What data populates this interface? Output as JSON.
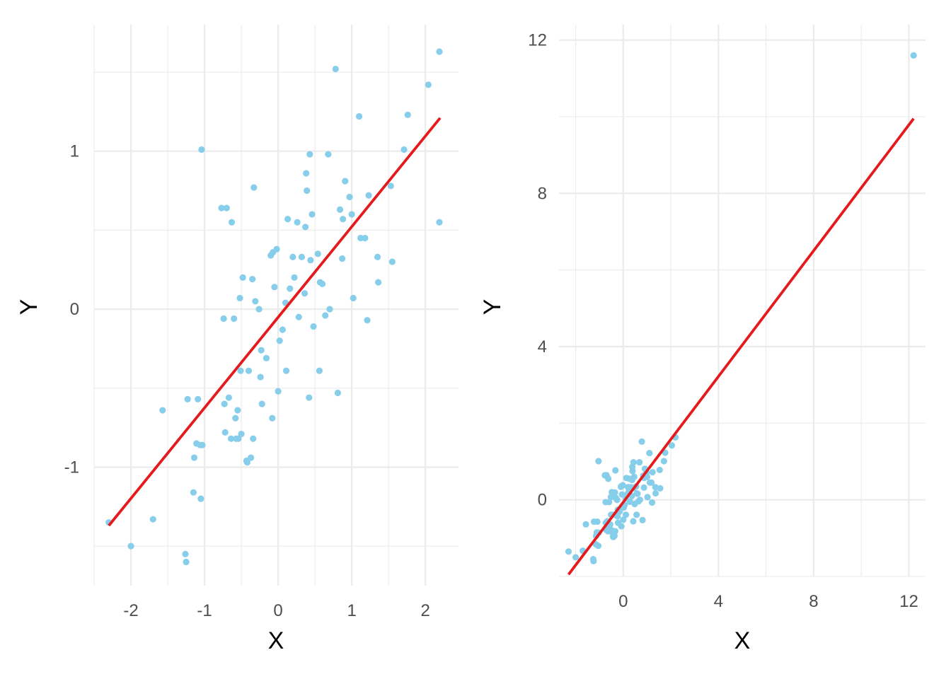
{
  "colors": {
    "point": "#87CEEB",
    "fit_line": "#E41A1C",
    "grid": "#EBEBEB"
  },
  "chart_data": [
    {
      "type": "scatter",
      "xlabel": "X",
      "ylabel": "Y",
      "xlim": [
        -2.5,
        2.45
      ],
      "ylim": [
        -1.75,
        1.8
      ],
      "xticks": [
        -2,
        -1,
        0,
        1,
        2
      ],
      "xtick_labels": [
        "-2",
        "-1",
        "0",
        "1",
        "2"
      ],
      "yticks": [
        -1,
        0,
        1
      ],
      "ytick_labels": [
        "-1",
        "0",
        "1"
      ],
      "grid": true,
      "fit_line": {
        "x": [
          -2.3,
          2.2
        ],
        "y": [
          -1.37,
          1.21
        ]
      },
      "points": {
        "x": [
          -2.3,
          -2.0,
          -1.7,
          -1.57,
          -1.26,
          -1.25,
          -1.23,
          -1.15,
          -1.14,
          -1.11,
          -1.09,
          -1.06,
          -1.05,
          -1.04,
          -1.03,
          -0.77,
          -0.74,
          -0.73,
          -0.72,
          -0.7,
          -0.67,
          -0.64,
          -0.63,
          -0.6,
          -0.58,
          -0.57,
          -0.55,
          -0.54,
          -0.52,
          -0.51,
          -0.5,
          -0.48,
          -0.43,
          -0.42,
          -0.4,
          -0.37,
          -0.35,
          -0.34,
          -0.33,
          -0.31,
          -0.26,
          -0.24,
          -0.23,
          -0.22,
          -0.16,
          -0.1,
          -0.08,
          -0.07,
          -0.05,
          -0.02,
          0.0,
          0.02,
          0.06,
          0.1,
          0.11,
          0.13,
          0.16,
          0.2,
          0.22,
          0.26,
          0.28,
          0.32,
          0.36,
          0.37,
          0.38,
          0.39,
          0.42,
          0.43,
          0.44,
          0.46,
          0.48,
          0.54,
          0.56,
          0.57,
          0.6,
          0.64,
          0.68,
          0.7,
          0.78,
          0.81,
          0.84,
          0.87,
          0.88,
          0.91,
          0.97,
          1.0,
          1.02,
          1.1,
          1.12,
          1.18,
          1.21,
          1.23,
          1.35,
          1.36,
          1.53,
          1.55,
          1.71,
          1.76,
          2.04,
          2.19,
          2.19
        ],
        "y": [
          -1.35,
          -1.5,
          -1.33,
          -0.64,
          -1.55,
          -1.6,
          -0.57,
          -1.16,
          -0.94,
          -0.85,
          -0.57,
          -0.86,
          -1.2,
          1.01,
          -0.86,
          0.64,
          -0.06,
          -0.6,
          -0.78,
          0.64,
          -0.56,
          -0.82,
          0.55,
          -0.06,
          -0.69,
          -0.82,
          -0.64,
          -0.82,
          0.07,
          -0.39,
          -0.79,
          0.2,
          -0.96,
          -0.97,
          -0.39,
          -0.94,
          0.19,
          -0.82,
          0.77,
          0.05,
          0.0,
          -0.43,
          -0.26,
          -0.6,
          -0.31,
          0.34,
          -0.69,
          0.36,
          0.14,
          0.38,
          -0.52,
          -0.2,
          -0.13,
          0.04,
          -0.39,
          0.57,
          0.13,
          0.33,
          0.2,
          0.55,
          -0.05,
          0.33,
          0.1,
          0.52,
          0.86,
          0.75,
          -0.56,
          0.98,
          0.31,
          0.6,
          -0.11,
          0.35,
          -0.39,
          0.17,
          0.16,
          -0.04,
          0.98,
          0.0,
          1.52,
          -0.53,
          0.63,
          0.32,
          0.57,
          0.81,
          0.71,
          0.6,
          0.07,
          1.22,
          0.45,
          0.45,
          -0.07,
          0.72,
          0.33,
          0.17,
          0.78,
          0.3,
          1.01,
          1.23,
          1.42,
          1.63,
          0.55
        ]
      }
    },
    {
      "type": "scatter",
      "xlabel": "X",
      "ylabel": "Y",
      "xlim": [
        -2.7,
        12.7
      ],
      "ylim": [
        -2.0,
        12.4
      ],
      "xticks": [
        0,
        4,
        8,
        12
      ],
      "xtick_labels": [
        "0",
        "4",
        "8",
        "12"
      ],
      "yticks": [
        0,
        4,
        8,
        12
      ],
      "ytick_labels": [
        "0",
        "4",
        "8",
        "12"
      ],
      "grid": true,
      "fit_line": {
        "x": [
          -2.3,
          12.2
        ],
        "y": [
          -1.95,
          9.95
        ]
      },
      "points": {
        "x": [
          -2.3,
          -2.0,
          -1.7,
          -1.57,
          -1.26,
          -1.25,
          -1.23,
          -1.15,
          -1.14,
          -1.11,
          -1.09,
          -1.06,
          -1.05,
          -1.04,
          -1.03,
          -0.77,
          -0.74,
          -0.73,
          -0.72,
          -0.7,
          -0.67,
          -0.64,
          -0.63,
          -0.6,
          -0.58,
          -0.57,
          -0.55,
          -0.54,
          -0.52,
          -0.51,
          -0.5,
          -0.48,
          -0.43,
          -0.42,
          -0.4,
          -0.37,
          -0.35,
          -0.34,
          -0.33,
          -0.31,
          -0.26,
          -0.24,
          -0.23,
          -0.22,
          -0.16,
          -0.1,
          -0.08,
          -0.07,
          -0.05,
          -0.02,
          0.0,
          0.02,
          0.06,
          0.1,
          0.11,
          0.13,
          0.16,
          0.2,
          0.22,
          0.26,
          0.28,
          0.32,
          0.36,
          0.37,
          0.38,
          0.39,
          0.42,
          0.43,
          0.44,
          0.46,
          0.48,
          0.54,
          0.56,
          0.57,
          0.6,
          0.64,
          0.68,
          0.7,
          0.78,
          0.81,
          0.84,
          0.87,
          0.88,
          0.91,
          0.97,
          1.0,
          1.02,
          1.1,
          1.12,
          1.18,
          1.21,
          1.23,
          1.35,
          1.36,
          1.53,
          1.55,
          1.71,
          1.76,
          2.04,
          2.19,
          12.2
        ],
        "y": [
          -1.35,
          -1.5,
          -1.33,
          -0.64,
          -1.55,
          -1.6,
          -0.57,
          -1.16,
          -0.94,
          -0.85,
          -0.57,
          -0.86,
          -1.2,
          1.01,
          -0.86,
          0.64,
          -0.06,
          -0.6,
          -0.78,
          0.64,
          -0.56,
          -0.82,
          0.55,
          -0.06,
          -0.69,
          -0.82,
          -0.64,
          -0.82,
          0.07,
          -0.39,
          -0.79,
          0.2,
          -0.96,
          -0.97,
          -0.39,
          -0.94,
          0.19,
          -0.82,
          0.77,
          0.05,
          0.0,
          -0.43,
          -0.26,
          -0.6,
          -0.31,
          0.34,
          -0.69,
          0.36,
          0.14,
          0.38,
          -0.52,
          -0.2,
          -0.13,
          0.04,
          -0.39,
          0.57,
          0.13,
          0.33,
          0.2,
          0.55,
          -0.05,
          0.33,
          0.1,
          0.52,
          0.86,
          0.75,
          -0.56,
          0.98,
          0.31,
          0.6,
          -0.11,
          0.35,
          -0.39,
          0.17,
          0.16,
          -0.04,
          0.98,
          0.0,
          1.52,
          -0.53,
          0.63,
          0.32,
          0.57,
          0.81,
          0.71,
          0.6,
          0.07,
          1.22,
          0.45,
          0.45,
          -0.07,
          0.72,
          0.33,
          0.17,
          0.78,
          0.3,
          1.01,
          1.23,
          1.42,
          1.63,
          11.6
        ]
      }
    }
  ]
}
